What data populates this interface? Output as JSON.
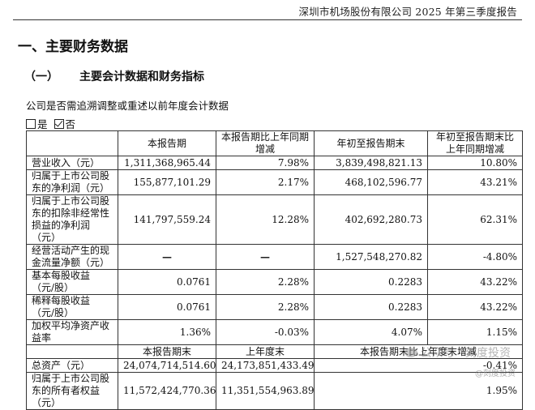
{
  "header": {
    "title": "深圳市机场股份有限公司 2025 年第三季度报告"
  },
  "section": {
    "heading": "一、主要财务数据",
    "subheading_num": "（一）",
    "subheading": "主要会计数据和财务指标"
  },
  "restatement": {
    "question": "公司是否需追溯调整或重述以前年度会计数据",
    "options": [
      {
        "label": "是",
        "checked": false
      },
      {
        "label": "否",
        "checked": true
      }
    ]
  },
  "table1": {
    "headers": [
      "",
      "本报告期",
      "本报告期比上年同期增减",
      "年初至报告期末",
      "年初至报告期末比上年同期增减"
    ],
    "rows": [
      {
        "label": "营业收入（元）",
        "current": "1,311,368,965.44",
        "change": "7.98%",
        "ytd": "3,839,498,821.13",
        "ytd_change": "10.80%"
      },
      {
        "label": "归属于上市公司股东的净利润（元）",
        "current": "155,877,101.29",
        "change": "2.17%",
        "ytd": "468,102,596.77",
        "ytd_change": "43.21%"
      },
      {
        "label": "归属于上市公司股东的扣除非经常性损益的净利润（元）",
        "current": "141,797,559.24",
        "change": "12.28%",
        "ytd": "402,692,280.73",
        "ytd_change": "62.31%"
      },
      {
        "label": "经营活动产生的现金流量净额（元）",
        "current": "—",
        "change": "—",
        "ytd": "1,527,548,270.82",
        "ytd_change": "-4.80%"
      },
      {
        "label": "基本每股收益（元/股）",
        "current": "0.0761",
        "change": "2.28%",
        "ytd": "0.2283",
        "ytd_change": "43.22%"
      },
      {
        "label": "稀释每股收益（元/股）",
        "current": "0.0761",
        "change": "2.28%",
        "ytd": "0.2283",
        "ytd_change": "43.22%"
      },
      {
        "label": "加权平均净资产收益率",
        "current": "1.36%",
        "change": "-0.03%",
        "ytd": "4.07%",
        "ytd_change": "1.15%"
      }
    ]
  },
  "table2": {
    "headers": [
      "",
      "本报告期末",
      "上年度末",
      "本报告期末比上年度末增减"
    ],
    "rows": [
      {
        "label": "总资产（元）",
        "current": "24,074,714,514.60",
        "prior": "24,173,851,433.49",
        "change": "-0.41%"
      },
      {
        "label": "归属于上市公司股东的所有者权益（元）",
        "current": "11,572,424,770.36",
        "prior": "11,351,554,963.89",
        "change": "1.95%"
      }
    ]
  },
  "watermark": {
    "text": "公众号 · 刻度投资",
    "sub": "@刻度投资"
  }
}
